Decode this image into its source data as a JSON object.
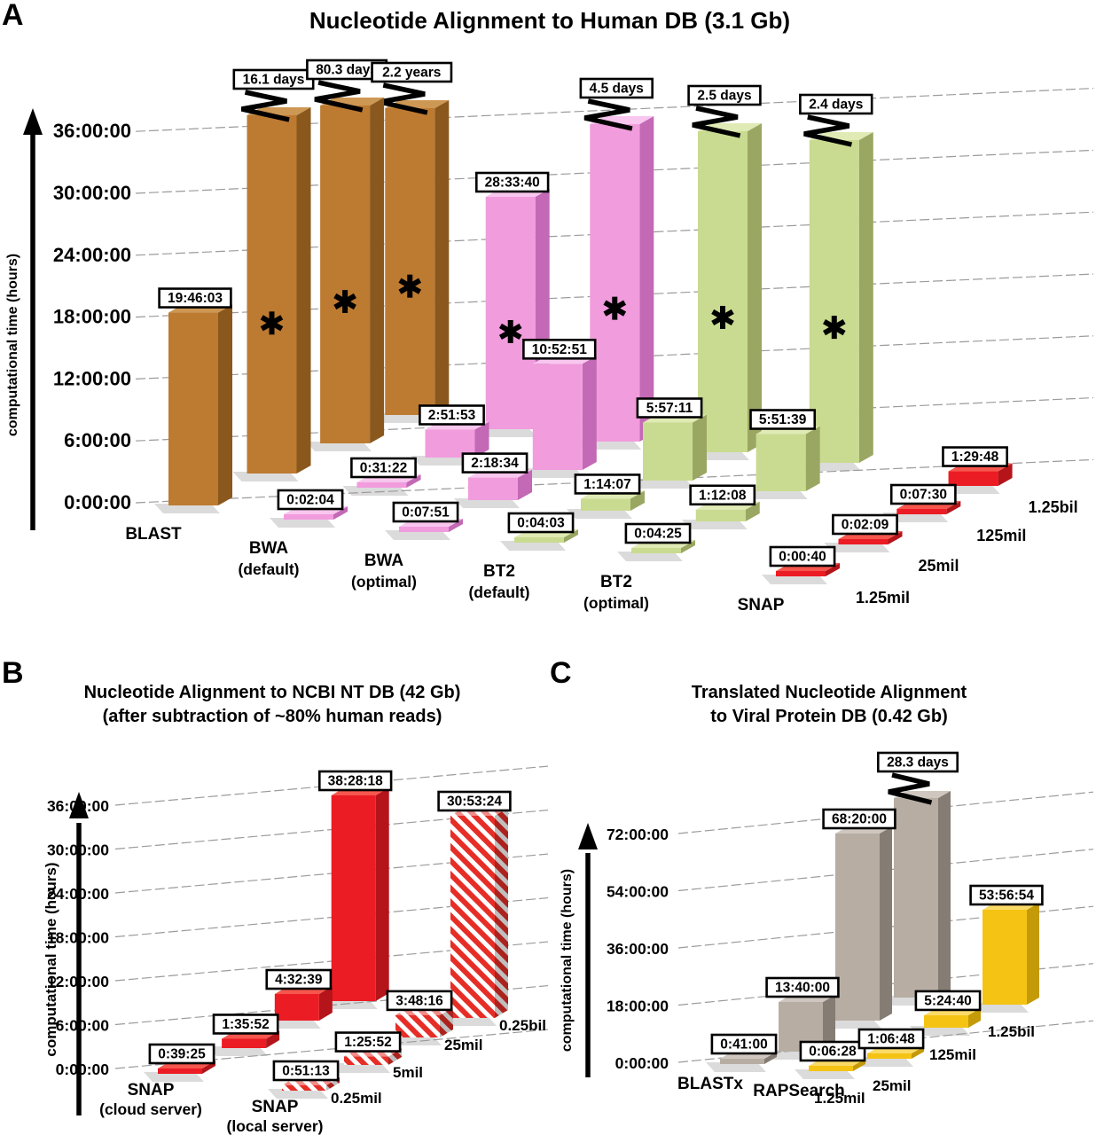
{
  "figure": {
    "background": "#ffffff",
    "kind": "3-panel 3D bar figure"
  },
  "chart_data": [
    {
      "panel_letter": "A",
      "type": "bar",
      "projection": "3d-column",
      "title_lines": [
        "Nucleotide Alignment to Human DB (3.1 Gb)"
      ],
      "ylabel": "computational time (hours)",
      "yticks": [
        "0:00:00",
        "6:00:00",
        "12:00:00",
        "18:00:00",
        "24:00:00",
        "30:00:00",
        "36:00:00"
      ],
      "ymax_hours": 36,
      "grid": true,
      "legend_position": "none",
      "input_sizes": [
        "1.25mil",
        "25mil",
        "125mil",
        "1.25bil"
      ],
      "series": [
        {
          "name": "BLAST",
          "name2": "",
          "striped": false,
          "colors": {
            "front": "#bd7a31",
            "top": "#cd9754",
            "side": "#8a581d"
          },
          "bars": [
            {
              "label": "19:46:03",
              "hours": 19.7675,
              "broken": false,
              "asterisk": false
            },
            {
              "label": "16.1 days",
              "hours": 386.4,
              "broken": true,
              "asterisk": true
            },
            {
              "label": "80.3 days",
              "hours": 1927.2,
              "broken": true,
              "asterisk": true
            },
            {
              "label": "2.2 years",
              "hours": 19272.0,
              "broken": true,
              "asterisk": true
            }
          ]
        },
        {
          "name": "BWA",
          "name2": "(default)",
          "striped": false,
          "colors": {
            "front": "#f19cdd",
            "top": "#f8c6ee",
            "side": "#c369b5"
          },
          "bars": [
            {
              "label": "0:02:04",
              "hours": 0.0344,
              "broken": false,
              "asterisk": false
            },
            {
              "label": "0:31:22",
              "hours": 0.5228,
              "broken": false,
              "asterisk": false
            },
            {
              "label": "2:51:53",
              "hours": 2.8647,
              "broken": false,
              "asterisk": false
            },
            {
              "label": "28:33:40",
              "hours": 28.5611,
              "broken": false,
              "asterisk": true
            }
          ]
        },
        {
          "name": "BWA",
          "name2": "(optimal)",
          "striped": false,
          "colors": {
            "front": "#f19cdd",
            "top": "#f8c6ee",
            "side": "#c369b5"
          },
          "bars": [
            {
              "label": "0:07:51",
              "hours": 0.1308,
              "broken": false,
              "asterisk": false
            },
            {
              "label": "2:18:34",
              "hours": 2.3094,
              "broken": false,
              "asterisk": false
            },
            {
              "label": "10:52:51",
              "hours": 10.8808,
              "broken": false,
              "asterisk": false
            },
            {
              "label": "4.5 days",
              "hours": 108.0,
              "broken": true,
              "asterisk": true
            }
          ]
        },
        {
          "name": "BT2",
          "name2": "(default)",
          "striped": false,
          "colors": {
            "front": "#c9db90",
            "top": "#dfeab4",
            "side": "#99a763"
          },
          "bars": [
            {
              "label": "0:04:03",
              "hours": 0.0675,
              "broken": false,
              "asterisk": false
            },
            {
              "label": "1:14:07",
              "hours": 1.2353,
              "broken": false,
              "asterisk": false
            },
            {
              "label": "5:57:11",
              "hours": 5.9531,
              "broken": false,
              "asterisk": false
            },
            {
              "label": "2.5 days",
              "hours": 60.0,
              "broken": true,
              "asterisk": true
            }
          ]
        },
        {
          "name": "BT2",
          "name2": "(optimal)",
          "striped": false,
          "colors": {
            "front": "#c9db90",
            "top": "#dfeab4",
            "side": "#99a763"
          },
          "bars": [
            {
              "label": "0:04:25",
              "hours": 0.0736,
              "broken": false,
              "asterisk": false
            },
            {
              "label": "1:12:08",
              "hours": 1.2022,
              "broken": false,
              "asterisk": false
            },
            {
              "label": "5:51:39",
              "hours": 5.8608,
              "broken": false,
              "asterisk": false
            },
            {
              "label": "2.4 days",
              "hours": 57.6,
              "broken": true,
              "asterisk": true
            }
          ]
        },
        {
          "name": "SNAP",
          "name2": "",
          "striped": false,
          "colors": {
            "front": "#ec1c24",
            "top": "#f6564d",
            "side": "#b5141b"
          },
          "bars": [
            {
              "label": "0:00:40",
              "hours": 0.0111,
              "broken": false,
              "asterisk": false
            },
            {
              "label": "0:02:09",
              "hours": 0.0358,
              "broken": false,
              "asterisk": false
            },
            {
              "label": "0:07:30",
              "hours": 0.125,
              "broken": false,
              "asterisk": false
            },
            {
              "label": "1:29:48",
              "hours": 1.4967,
              "broken": false,
              "asterisk": false
            }
          ]
        }
      ]
    },
    {
      "panel_letter": "B",
      "type": "bar",
      "projection": "3d-column",
      "title_lines": [
        "Nucleotide Alignment to NCBI NT DB (42 Gb)",
        "(after subtraction of ~80% human reads)"
      ],
      "ylabel": "computational time (hours)",
      "yticks": [
        "0:00:00",
        "6:00:00",
        "12:00:00",
        "18:00:00",
        "24:00:00",
        "30:00:00",
        "36:00:00"
      ],
      "ymax_hours": 36,
      "grid": true,
      "legend_position": "none",
      "input_sizes": [
        "0.25mil",
        "5mil",
        "25mil",
        "0.25bil"
      ],
      "series": [
        {
          "name": "SNAP",
          "name2": "(cloud server)",
          "striped": false,
          "colors": {
            "front": "#ec1c24",
            "top": "#f6564d",
            "side": "#b5141b"
          },
          "bars": [
            {
              "label": "0:39:25",
              "hours": 0.6569,
              "broken": false,
              "asterisk": false
            },
            {
              "label": "1:35:52",
              "hours": 1.5978,
              "broken": false,
              "asterisk": false
            },
            {
              "label": "4:32:39",
              "hours": 4.5442,
              "broken": false,
              "asterisk": false
            },
            {
              "label": "38:28:18",
              "hours": 38.4717,
              "broken": false,
              "asterisk": false
            }
          ]
        },
        {
          "name": "SNAP",
          "name2": "(local server)",
          "striped": true,
          "colors": {
            "front": "#e62e27",
            "top": "#f6564d",
            "side": "#b5141b"
          },
          "bars": [
            {
              "label": "0:51:13",
              "hours": 0.8536,
              "broken": false,
              "asterisk": false
            },
            {
              "label": "1:25:52",
              "hours": 1.4311,
              "broken": false,
              "asterisk": false
            },
            {
              "label": "3:48:16",
              "hours": 3.8044,
              "broken": false,
              "asterisk": false
            },
            {
              "label": "30:53:24",
              "hours": 30.89,
              "broken": false,
              "asterisk": false
            }
          ]
        }
      ]
    },
    {
      "panel_letter": "C",
      "type": "bar",
      "projection": "3d-column",
      "title_lines": [
        "Translated Nucleotide Alignment",
        "to Viral Protein DB (0.42 Gb)"
      ],
      "ylabel": "computational time (hours)",
      "yticks": [
        "0:00:00",
        "18:00:00",
        "36:00:00",
        "54:00:00",
        "72:00:00"
      ],
      "ymax_hours": 72,
      "grid": true,
      "legend_position": "none",
      "input_sizes": [
        "1.25mil",
        "25mil",
        "125mil",
        "1.25bil"
      ],
      "series": [
        {
          "name": "BLASTx",
          "name2": "",
          "striped": false,
          "colors": {
            "front": "#b7ada3",
            "top": "#cfc7bf",
            "side": "#857c73"
          },
          "bars": [
            {
              "label": "0:41:00",
              "hours": 0.6833,
              "broken": false,
              "asterisk": false
            },
            {
              "label": "13:40:00",
              "hours": 13.6667,
              "broken": false,
              "asterisk": false
            },
            {
              "label": "68:20:00",
              "hours": 68.3333,
              "broken": false,
              "asterisk": false
            },
            {
              "label": "28.3 days",
              "hours": 679.2,
              "broken": true,
              "asterisk": false
            }
          ]
        },
        {
          "name": "RAPSearch",
          "name2": "",
          "striped": false,
          "colors": {
            "front": "#f5c314",
            "top": "#fbdb67",
            "side": "#c49a08"
          },
          "bars": [
            {
              "label": "0:06:28",
              "hours": 0.1078,
              "broken": false,
              "asterisk": false
            },
            {
              "label": "1:06:48",
              "hours": 1.1133,
              "broken": false,
              "asterisk": false
            },
            {
              "label": "5:24:40",
              "hours": 5.4111,
              "broken": false,
              "asterisk": false
            },
            {
              "label": "53:56:54",
              "hours": 53.9483,
              "broken": false,
              "asterisk": false
            }
          ]
        }
      ]
    }
  ]
}
